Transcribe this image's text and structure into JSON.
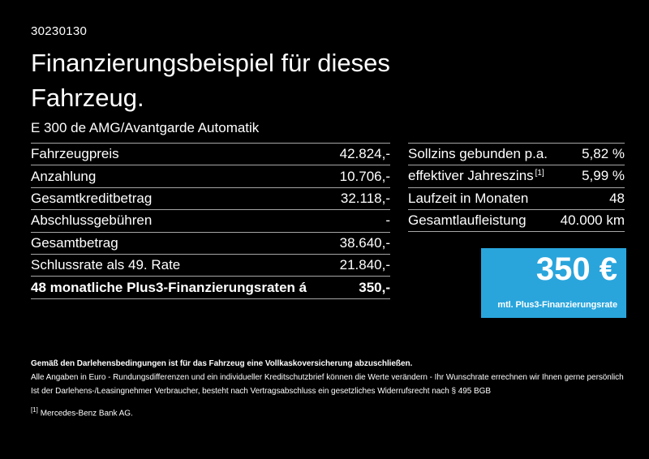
{
  "page": {
    "background": "#000000",
    "doc_number": "30230130",
    "title": "Finanzierungsbeispiel für dieses Fahrzeug.",
    "vehicle": "E 300 de AMG/Avantgarde Automatik"
  },
  "finance_table": {
    "rows": [
      {
        "label": "Fahrzeugpreis",
        "value": "42.824,-"
      },
      {
        "label": "Anzahlung",
        "value": "10.706,-"
      },
      {
        "label": "Gesamtkreditbetrag",
        "value": "32.118,-"
      },
      {
        "label": "Abschlussgebühren",
        "value": "-"
      },
      {
        "label": "Gesamtbetrag",
        "value": "38.640,-"
      },
      {
        "label": "Schlussrate als 49. Rate",
        "value": "21.840,-"
      },
      {
        "label": "48 monatliche Plus3-Finanzierungsraten á",
        "value": "350,-"
      }
    ]
  },
  "conditions_table": {
    "rows": [
      {
        "label": "Sollzins gebunden p.a.",
        "value": "5,82 %"
      },
      {
        "label": "effektiver Jahreszins",
        "sup": "[1]",
        "value": "5,99 %"
      },
      {
        "label": "Laufzeit in Monaten",
        "value": "48"
      },
      {
        "label": "Gesamtlaufleistung",
        "value": "40.000 km"
      }
    ]
  },
  "rate_box": {
    "background": "#29a5dc",
    "amount": "350 €",
    "caption": "mtl. Plus3-Finanzierungsrate"
  },
  "footnotes": {
    "insurance": "Gemäß den Darlehensbedingungen ist für das Fahrzeug eine Vollkaskoversicherung abzuschließen.",
    "general": "Alle Angaben in Euro - Rundungsdifferenzen und ein individueller Kreditschutzbrief können die Werte verändern - Ihr Wunschrate errechnen wir Ihnen gerne persönlich",
    "withdrawal": "Ist der Darlehens-/Leasingnehmer Verbraucher, besteht nach Vertragsabschluss ein gesetzliches Widerrufsrecht nach § 495 BGB",
    "ref_marker": "[1]",
    "ref_text": "Mercedes-Benz Bank AG."
  }
}
